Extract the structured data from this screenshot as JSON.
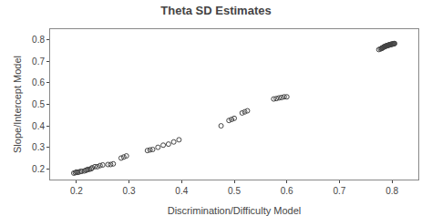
{
  "chart_data": {
    "type": "scatter",
    "title": "Theta SD Estimates",
    "xlabel": "Discrimination/Difficulty Model",
    "ylabel": "Slope/Intercept Model",
    "xlim": [
      0.15,
      0.85
    ],
    "ylim": [
      0.15,
      0.85
    ],
    "xticks": [
      0.2,
      0.3,
      0.4,
      0.5,
      0.6,
      0.7,
      0.8
    ],
    "yticks": [
      0.2,
      0.3,
      0.4,
      0.5,
      0.6,
      0.7,
      0.8
    ],
    "x": [
      0.195,
      0.198,
      0.2,
      0.202,
      0.205,
      0.208,
      0.21,
      0.215,
      0.218,
      0.22,
      0.222,
      0.225,
      0.228,
      0.23,
      0.235,
      0.24,
      0.245,
      0.25,
      0.26,
      0.265,
      0.27,
      0.285,
      0.29,
      0.295,
      0.335,
      0.34,
      0.345,
      0.355,
      0.365,
      0.375,
      0.385,
      0.395,
      0.475,
      0.49,
      0.495,
      0.5,
      0.515,
      0.52,
      0.525,
      0.575,
      0.58,
      0.585,
      0.59,
      0.595,
      0.6,
      0.775,
      0.778,
      0.78,
      0.781,
      0.782,
      0.783,
      0.784,
      0.785,
      0.786,
      0.787,
      0.788,
      0.789,
      0.79,
      0.791,
      0.792,
      0.793,
      0.794,
      0.795,
      0.796,
      0.797,
      0.798,
      0.799,
      0.8,
      0.801,
      0.802,
      0.803,
      0.804,
      0.805
    ],
    "values": [
      0.18,
      0.182,
      0.185,
      0.183,
      0.185,
      0.188,
      0.188,
      0.19,
      0.193,
      0.195,
      0.197,
      0.198,
      0.2,
      0.205,
      0.21,
      0.21,
      0.215,
      0.218,
      0.22,
      0.22,
      0.223,
      0.25,
      0.255,
      0.26,
      0.285,
      0.288,
      0.29,
      0.3,
      0.31,
      0.315,
      0.325,
      0.335,
      0.4,
      0.425,
      0.43,
      0.435,
      0.46,
      0.465,
      0.47,
      0.525,
      0.527,
      0.53,
      0.532,
      0.535,
      0.535,
      0.755,
      0.758,
      0.76,
      0.762,
      0.763,
      0.765,
      0.766,
      0.768,
      0.769,
      0.77,
      0.771,
      0.772,
      0.773,
      0.774,
      0.775,
      0.775,
      0.776,
      0.777,
      0.778,
      0.779,
      0.779,
      0.78,
      0.78,
      0.781,
      0.781,
      0.782,
      0.783,
      0.783
    ],
    "color": "#444444",
    "marker": "circle",
    "grid": false
  }
}
